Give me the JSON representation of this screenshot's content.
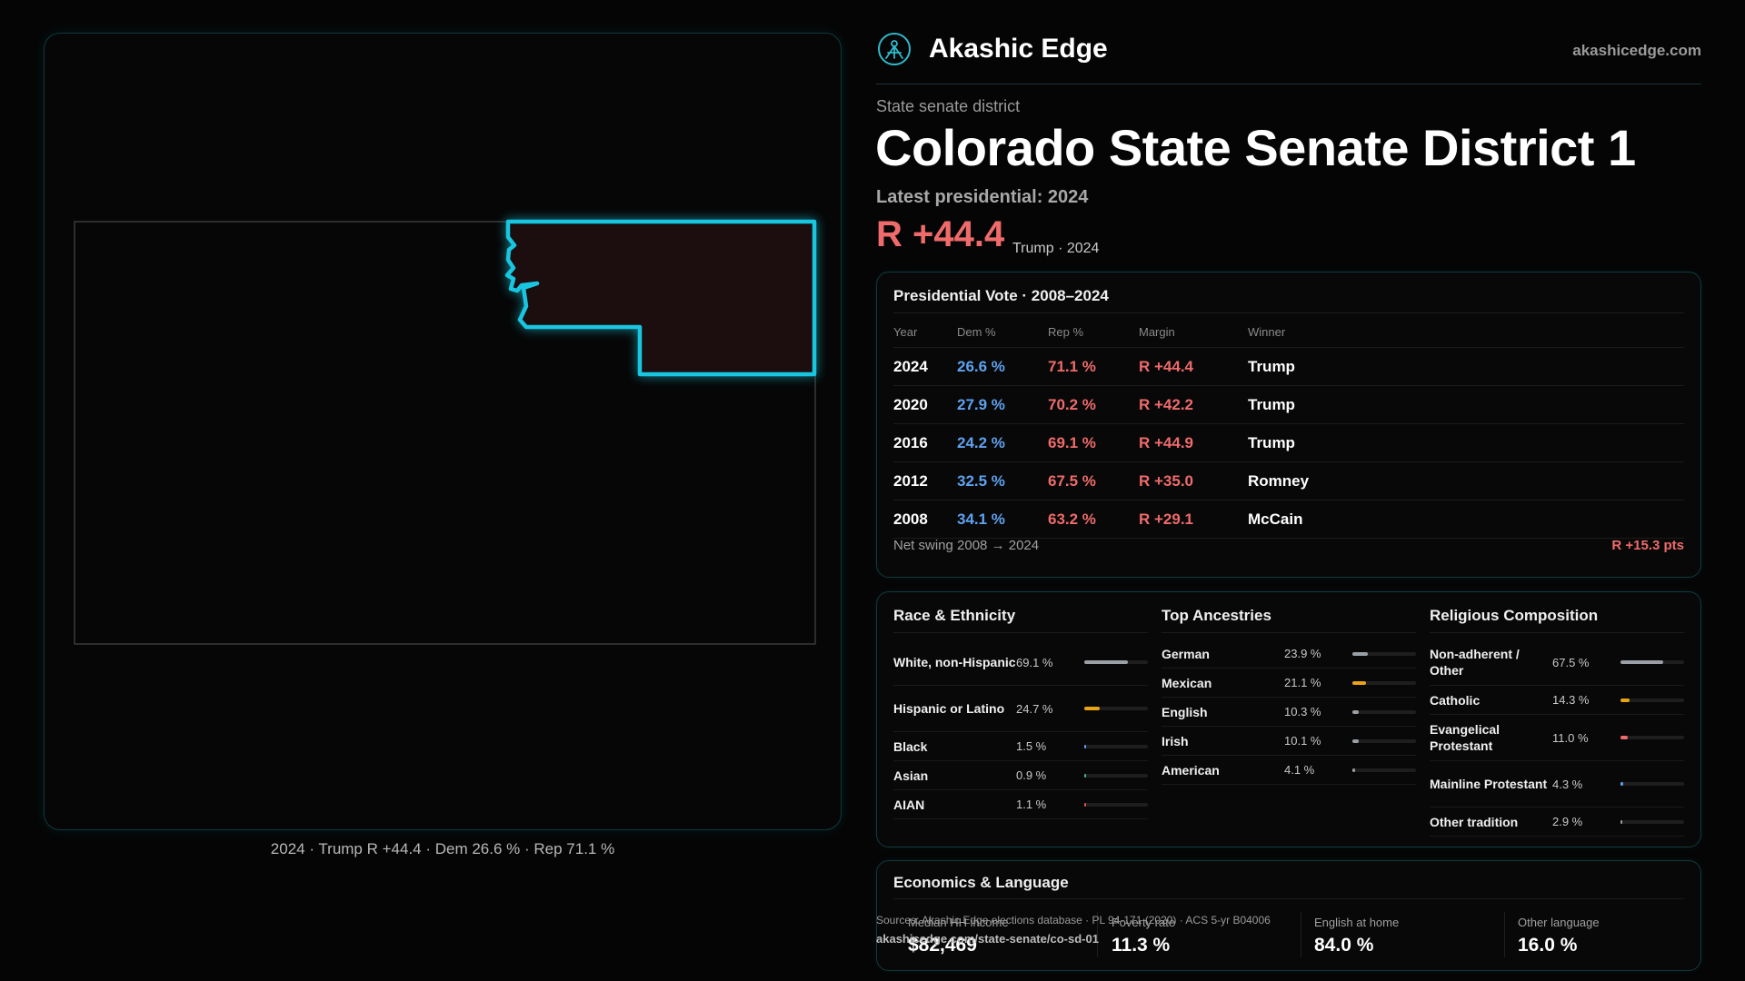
{
  "brand": {
    "name": "Akashic Edge",
    "url": "akashicedge.com",
    "logo_icon": "akashic-edge-logo-icon"
  },
  "district": {
    "kind": "State senate district",
    "title": "Colorado State Senate District 1",
    "latest_label": "Latest presidential: 2024",
    "margin": "R +44.4",
    "margin_sub": "Trump · 2024"
  },
  "map": {
    "caption": "2024 · Trump R +44.4 · Dem 26.6 % · Rep 71.1 %",
    "highlight_color": "#19c6e0",
    "fill_color": "#1c0d0f"
  },
  "presidential": {
    "title": "Presidential Vote · 2008–2024",
    "headers": [
      "Year",
      "Dem %",
      "Rep %",
      "Margin",
      "Winner"
    ],
    "rows": [
      {
        "year": "2024",
        "dem": "26.6 %",
        "rep": "71.1 %",
        "margin": "R +44.4",
        "winner": "Trump"
      },
      {
        "year": "2020",
        "dem": "27.9 %",
        "rep": "70.2 %",
        "margin": "R +42.2",
        "winner": "Trump"
      },
      {
        "year": "2016",
        "dem": "24.2 %",
        "rep": "69.1 %",
        "margin": "R +44.9",
        "winner": "Trump"
      },
      {
        "year": "2012",
        "dem": "32.5 %",
        "rep": "67.5 %",
        "margin": "R +35.0",
        "winner": "Romney"
      },
      {
        "year": "2008",
        "dem": "34.1 %",
        "rep": "63.2 %",
        "margin": "R +29.1",
        "winner": "McCain"
      }
    ],
    "net_swing_label": "Net swing 2008 → 2024",
    "net_swing_value": "R +15.3 pts",
    "dem_color": "#5ea2f0",
    "rep_color": "#ef6b6b"
  },
  "demographics": [
    {
      "title": "Race & Ethnicity",
      "items": [
        {
          "label": "White, non-Hispanic",
          "value": "69.1 %",
          "pct": 69.1,
          "color": "#9aa0a6"
        },
        {
          "label": "Hispanic or Latino",
          "value": "24.7 %",
          "pct": 24.7,
          "color": "#e8a317"
        },
        {
          "label": "Black",
          "value": "1.5 %",
          "pct": 1.5,
          "color": "#5ea2f0"
        },
        {
          "label": "Asian",
          "value": "0.9 %",
          "pct": 0.9,
          "color": "#3fbf7f"
        },
        {
          "label": "AIAN",
          "value": "1.1 %",
          "pct": 1.1,
          "color": "#d9534f"
        }
      ]
    },
    {
      "title": "Top Ancestries",
      "items": [
        {
          "label": "German",
          "value": "23.9 %",
          "pct": 23.9,
          "color": "#9aa0a6"
        },
        {
          "label": "Mexican",
          "value": "21.1 %",
          "pct": 21.1,
          "color": "#e8a317"
        },
        {
          "label": "English",
          "value": "10.3 %",
          "pct": 10.3,
          "color": "#9aa0a6"
        },
        {
          "label": "Irish",
          "value": "10.1 %",
          "pct": 10.1,
          "color": "#9aa0a6"
        },
        {
          "label": "American",
          "value": "4.1 %",
          "pct": 4.1,
          "color": "#9aa0a6"
        }
      ]
    },
    {
      "title": "Religious Composition",
      "items": [
        {
          "label": "Non-adherent / Other",
          "value": "67.5 %",
          "pct": 67.5,
          "color": "#9aa0a6"
        },
        {
          "label": "Catholic",
          "value": "14.3 %",
          "pct": 14.3,
          "color": "#e8a317"
        },
        {
          "label": "Evangelical Protestant",
          "value": "11.0 %",
          "pct": 11.0,
          "color": "#ef6b6b"
        },
        {
          "label": "Mainline Protestant",
          "value": "4.3 %",
          "pct": 4.3,
          "color": "#5ea2f0"
        },
        {
          "label": "Other tradition",
          "value": "2.9 %",
          "pct": 2.9,
          "color": "#9aa0a6"
        }
      ]
    }
  ],
  "economics": {
    "title": "Economics & Language",
    "items": [
      {
        "label": "Median HH income",
        "value": "$82,469"
      },
      {
        "label": "Poverty rate",
        "value": "11.3 %"
      },
      {
        "label": "English at home",
        "value": "84.0 %"
      },
      {
        "label": "Other language",
        "value": "16.0 %"
      }
    ]
  },
  "footer": {
    "sources": "Sources: Akashic Edge elections database · PL 94-171 (2020) · ACS 5-yr B04006",
    "url": "akashicedge.com/state-senate/co-sd-01"
  }
}
